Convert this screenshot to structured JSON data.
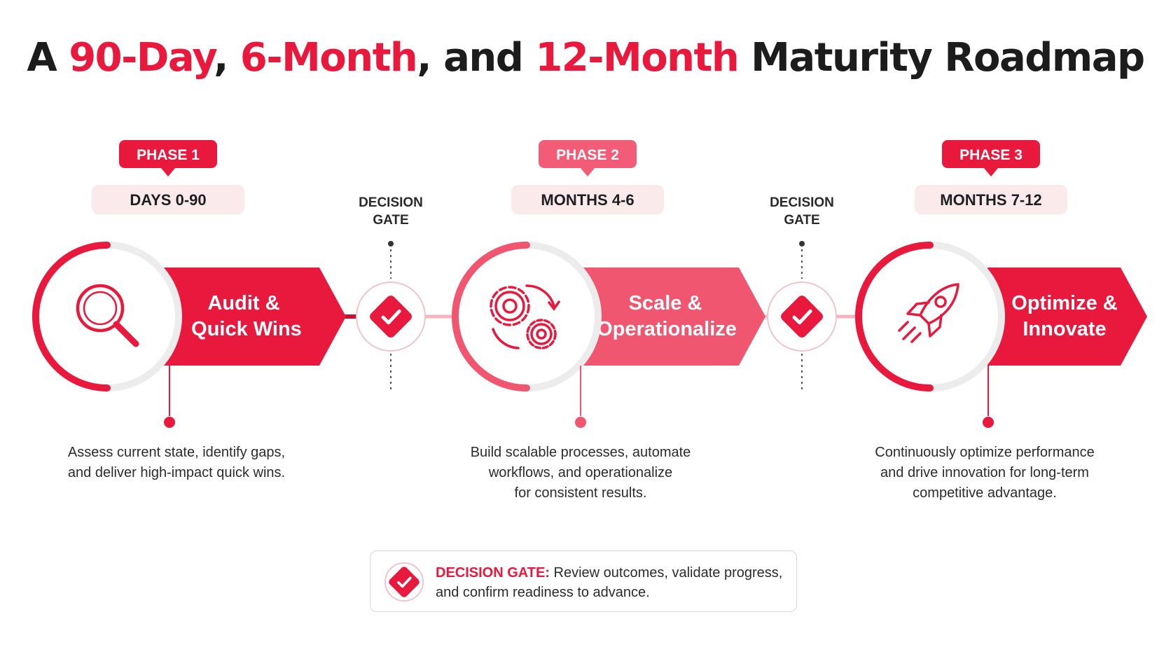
{
  "title": {
    "part1": "A ",
    "part2": "90-Day",
    "part3": ", ",
    "part4": "6-Month",
    "part5": ", and ",
    "part6": "12-Month",
    "part7": " Maturity Roadmap"
  },
  "phases": [
    {
      "badge": "PHASE 1",
      "period": "DAYS 0-90",
      "name_line1": "Audit &",
      "name_line2": "Quick Wins",
      "icon": "magnifier-icon",
      "desc_line1": "Assess current state, identify gaps,",
      "desc_line2": "and deliver high-impact quick wins.",
      "desc_line3": ""
    },
    {
      "badge": "PHASE 2",
      "period": "MONTHS 4-6",
      "name_line1": "Scale &",
      "name_line2": "Operationalize",
      "icon": "gears-icon",
      "desc_line1": "Build scalable processes, automate",
      "desc_line2": "workflows, and operationalize",
      "desc_line3": "for consistent results."
    },
    {
      "badge": "PHASE 3",
      "period": "MONTHS 7-12",
      "name_line1": "Optimize &",
      "name_line2": "Innovate",
      "icon": "rocket-icon",
      "desc_line1": "Continuously optimize performance",
      "desc_line2": "and drive innovation for long-term",
      "desc_line3": "competitive advantage."
    }
  ],
  "gates": [
    {
      "line1": "DECISION",
      "line2": "GATE",
      "icon": "check-diamond-icon"
    },
    {
      "line1": "DECISION",
      "line2": "GATE",
      "icon": "check-diamond-icon"
    }
  ],
  "legend": {
    "label": "DECISION GATE:",
    "text_line1": " Review outcomes, validate progress,",
    "text_line2": "and confirm readiness to advance.",
    "icon": "check-diamond-icon"
  },
  "colors": {
    "primary": "#e8193d",
    "secondary": "#f0566f",
    "badge_pale": "#f25c76",
    "pill_bg": "#fbeaec",
    "text": "#1f1f1f"
  }
}
